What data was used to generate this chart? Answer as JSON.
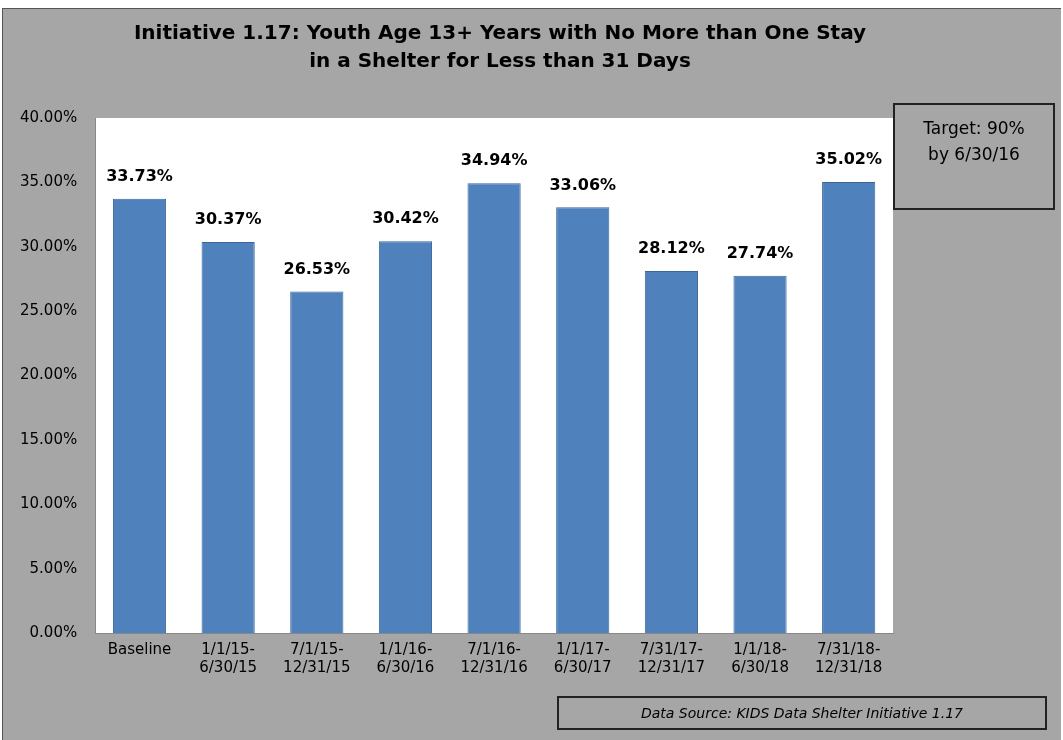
{
  "chart_data": {
    "type": "bar",
    "title": "Initiative 1.17: Youth Age 13+ Years with No More than One Stay in a Shelter for Less than 31 Days",
    "categories": [
      "Baseline",
      "1/1/15-6/30/15",
      "7/1/15-12/31/15",
      "1/1/16-6/30/16",
      "7/1/16-12/31/16",
      "1/1/17-6/30/17",
      "7/31/17-12/31/17",
      "1/1/18-6/30/18",
      "7/31/18-12/31/18"
    ],
    "values": [
      33.73,
      30.37,
      26.53,
      30.42,
      34.94,
      33.06,
      28.12,
      27.74,
      35.02
    ],
    "value_labels": [
      "33.73%",
      "30.37%",
      "26.53%",
      "30.42%",
      "34.94%",
      "33.06%",
      "28.12%",
      "27.74%",
      "35.02%"
    ],
    "color": "#4f81bd",
    "ylim": [
      0,
      40
    ],
    "yticks": [
      {
        "value": 0,
        "label": "0.00%"
      },
      {
        "value": 5,
        "label": "5.00%"
      },
      {
        "value": 10,
        "label": "10.00%"
      },
      {
        "value": 15,
        "label": "15.00%"
      },
      {
        "value": 20,
        "label": "20.00%"
      },
      {
        "value": 25,
        "label": "25.00%"
      },
      {
        "value": 30,
        "label": "30.00%"
      },
      {
        "value": 35,
        "label": "35.00%"
      },
      {
        "value": 40,
        "label": "40.00%"
      }
    ],
    "grid": false,
    "annotations": [
      "Target: 90% by 6/30/16",
      "Data Source: KIDS Data Shelter Initiative 1.17"
    ]
  }
}
